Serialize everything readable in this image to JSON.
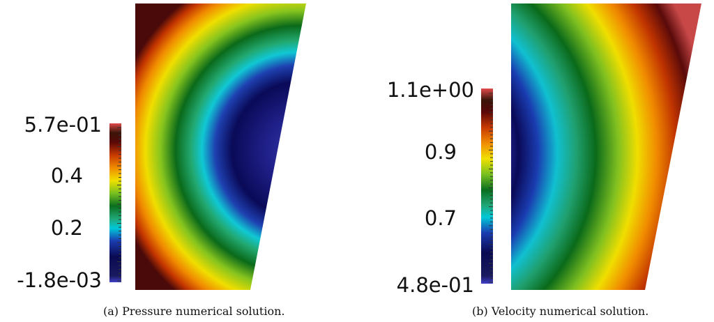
{
  "panels": [
    {
      "id": "pressure",
      "caption": "(a) Pressure numerical solution.",
      "colorbar": {
        "tick_labels": [
          "5.7e-01",
          "0.4",
          "0.2",
          "-1.8e-03"
        ],
        "min": -0.0018,
        "max": 0.57
      },
      "field_description": "concentric color bands centered on the right edge; center minimum (dark blue) increasing outward to red"
    },
    {
      "id": "velocity",
      "caption": "(b) Velocity numerical solution.",
      "colorbar": {
        "tick_labels": [
          "1.1e+00",
          "0.9",
          "0.7",
          "4.8e-01"
        ],
        "min": 0.48,
        "max": 1.1
      },
      "field_description": "concentric color bands centered far to the left; minimum (dark blue) at left edge increasing to red at right"
    }
  ],
  "colormap": [
    "#3c3cbe",
    "#101045",
    "#0a0a5a",
    "#1a2fa0",
    "#00b0c8",
    "#4fe0d0",
    "#1aa04a",
    "#0a6e1e",
    "#8cc820",
    "#f0e400",
    "#f08a00",
    "#c83a00",
    "#6a0a0a",
    "#3a1a0a",
    "#d84848"
  ]
}
